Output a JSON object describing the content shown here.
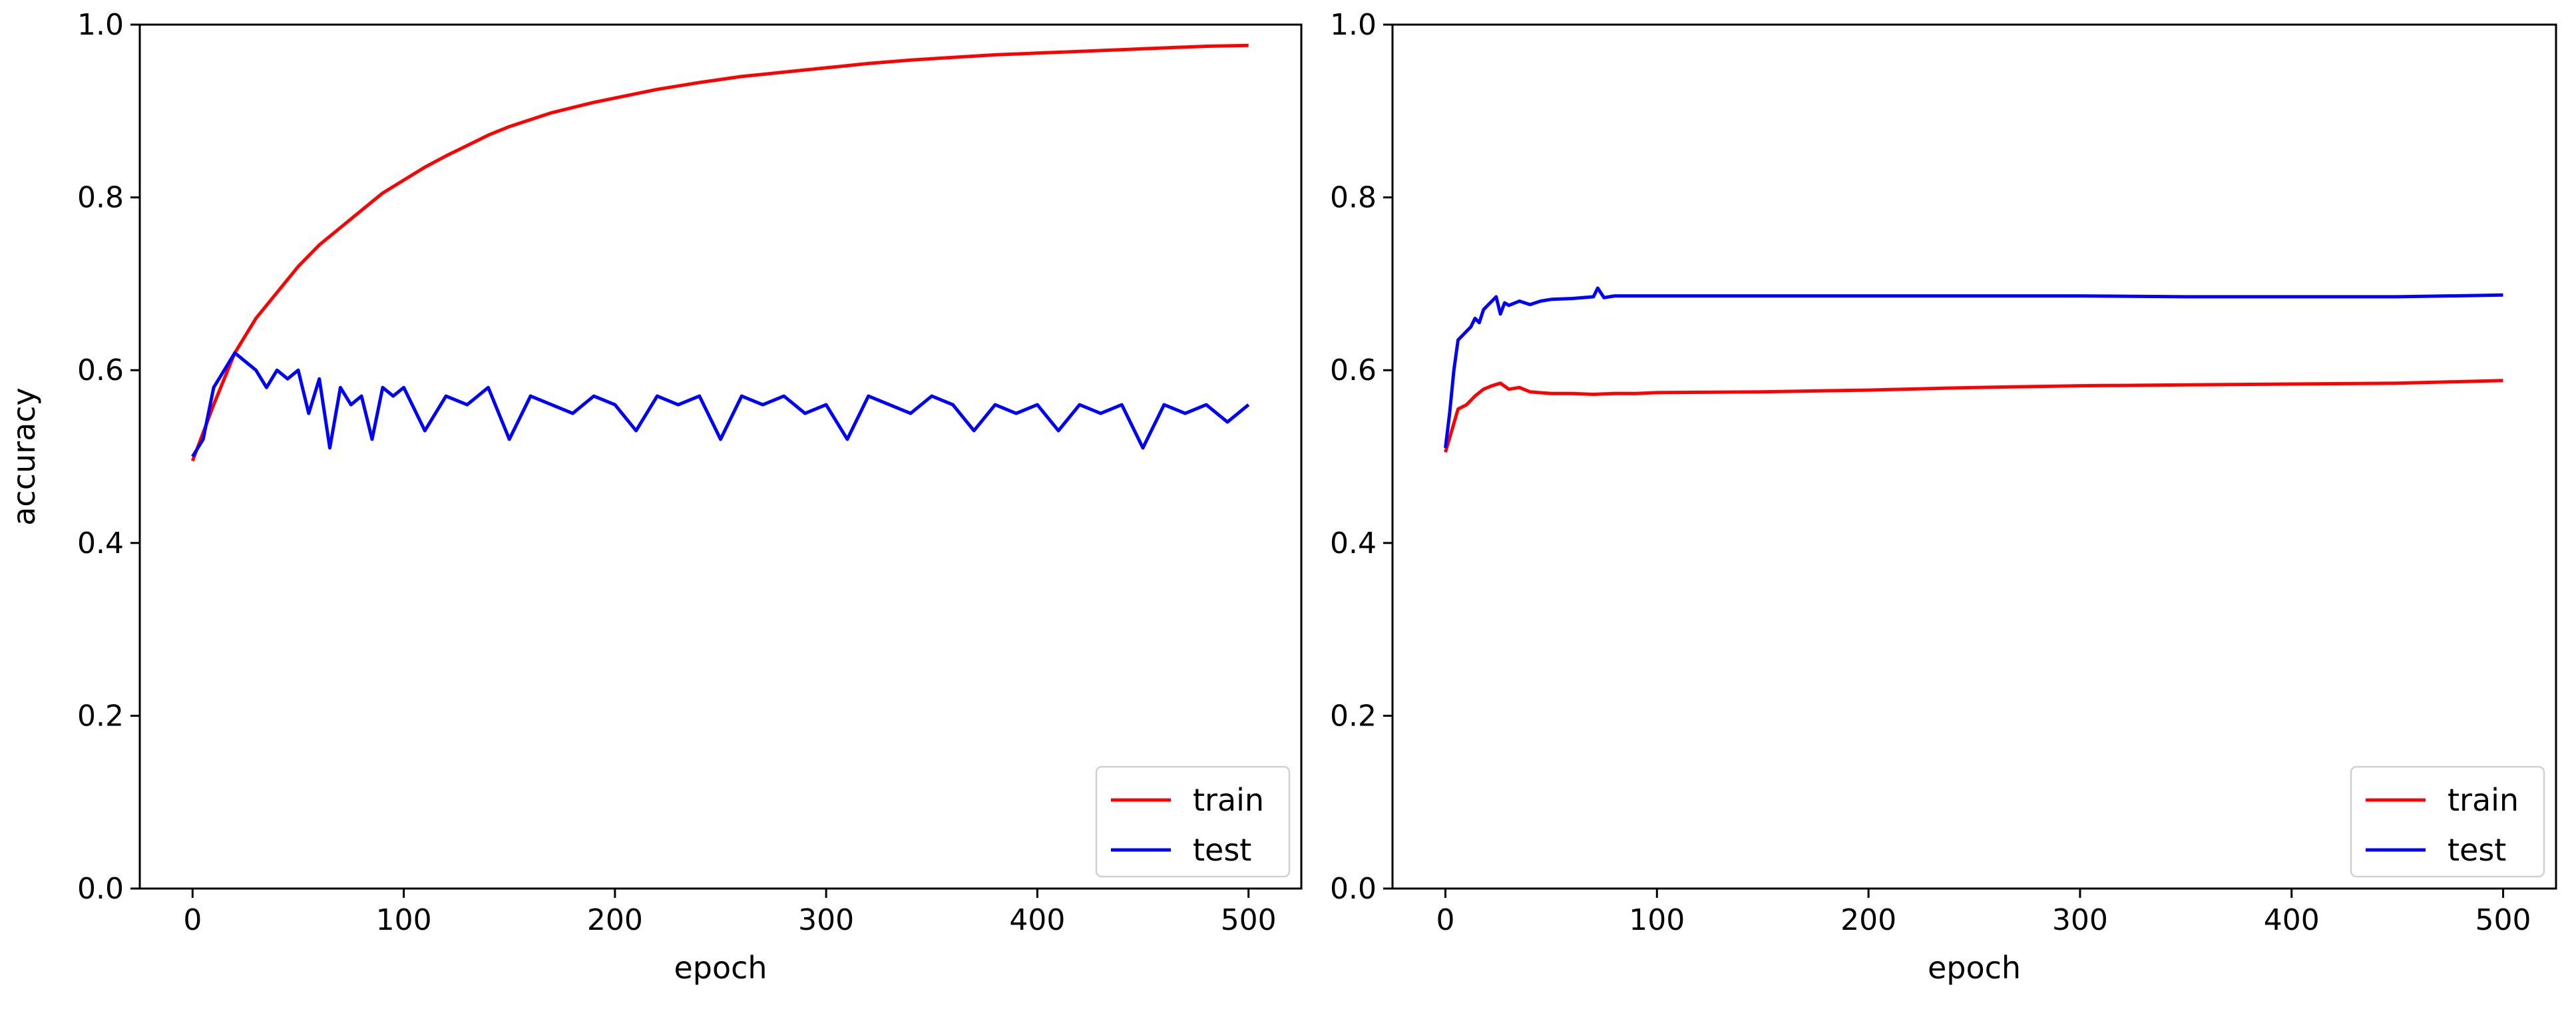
{
  "colors": {
    "train": "#ff0000",
    "test": "#0000ff",
    "axis": "#000000",
    "background": "#ffffff"
  },
  "chart_data": [
    {
      "type": "line",
      "xlabel": "epoch",
      "ylabel": "accuracy",
      "xlim": [
        -25,
        525
      ],
      "ylim": [
        0.0,
        1.0
      ],
      "x_ticks": [
        "0",
        "100",
        "200",
        "300",
        "400",
        "500"
      ],
      "y_ticks": [
        "0.0",
        "0.2",
        "0.4",
        "0.6",
        "0.8",
        "1.0"
      ],
      "grid": false,
      "legend_position": "lower right",
      "series": [
        {
          "name": "train",
          "color": "#ff0000",
          "x": [
            0,
            10,
            20,
            30,
            40,
            50,
            60,
            70,
            80,
            90,
            100,
            110,
            120,
            130,
            140,
            150,
            160,
            170,
            180,
            190,
            200,
            220,
            240,
            260,
            280,
            300,
            320,
            340,
            360,
            380,
            400,
            420,
            440,
            460,
            480,
            500
          ],
          "y": [
            0.495,
            0.56,
            0.62,
            0.66,
            0.69,
            0.72,
            0.745,
            0.765,
            0.785,
            0.805,
            0.82,
            0.835,
            0.848,
            0.86,
            0.872,
            0.882,
            0.89,
            0.898,
            0.904,
            0.91,
            0.915,
            0.925,
            0.933,
            0.94,
            0.945,
            0.95,
            0.955,
            0.959,
            0.962,
            0.965,
            0.967,
            0.969,
            0.971,
            0.973,
            0.975,
            0.976
          ]
        },
        {
          "name": "test",
          "color": "#0000ff",
          "x": [
            0,
            5,
            10,
            15,
            20,
            25,
            30,
            35,
            40,
            45,
            50,
            55,
            60,
            65,
            70,
            75,
            80,
            85,
            90,
            95,
            100,
            110,
            120,
            130,
            140,
            150,
            160,
            170,
            180,
            190,
            200,
            210,
            220,
            230,
            240,
            250,
            260,
            270,
            280,
            290,
            300,
            310,
            320,
            330,
            340,
            350,
            360,
            370,
            380,
            390,
            400,
            410,
            420,
            430,
            440,
            450,
            460,
            470,
            480,
            490,
            500
          ],
          "y": [
            0.5,
            0.52,
            0.58,
            0.6,
            0.62,
            0.61,
            0.6,
            0.58,
            0.6,
            0.59,
            0.6,
            0.55,
            0.59,
            0.51,
            0.58,
            0.56,
            0.57,
            0.52,
            0.58,
            0.57,
            0.58,
            0.53,
            0.57,
            0.56,
            0.58,
            0.52,
            0.57,
            0.56,
            0.55,
            0.57,
            0.56,
            0.53,
            0.57,
            0.56,
            0.57,
            0.52,
            0.57,
            0.56,
            0.57,
            0.55,
            0.56,
            0.52,
            0.57,
            0.56,
            0.55,
            0.57,
            0.56,
            0.53,
            0.56,
            0.55,
            0.56,
            0.53,
            0.56,
            0.55,
            0.56,
            0.51,
            0.56,
            0.55,
            0.56,
            0.54,
            0.56
          ]
        }
      ]
    },
    {
      "type": "line",
      "xlabel": "epoch",
      "ylabel": "",
      "xlim": [
        -25,
        525
      ],
      "ylim": [
        0.0,
        1.0
      ],
      "x_ticks": [
        "0",
        "100",
        "200",
        "300",
        "400",
        "500"
      ],
      "y_ticks": [
        "0.0",
        "0.2",
        "0.4",
        "0.6",
        "0.8",
        "1.0"
      ],
      "grid": false,
      "legend_position": "lower right",
      "series": [
        {
          "name": "train",
          "color": "#ff0000",
          "x": [
            0,
            3,
            6,
            10,
            14,
            18,
            22,
            26,
            30,
            35,
            40,
            50,
            60,
            70,
            80,
            90,
            100,
            150,
            200,
            250,
            300,
            350,
            400,
            450,
            500
          ],
          "y": [
            0.505,
            0.53,
            0.555,
            0.56,
            0.57,
            0.578,
            0.582,
            0.585,
            0.578,
            0.58,
            0.575,
            0.573,
            0.573,
            0.572,
            0.573,
            0.573,
            0.574,
            0.575,
            0.577,
            0.58,
            0.582,
            0.583,
            0.584,
            0.585,
            0.588
          ]
        },
        {
          "name": "test",
          "color": "#0000ff",
          "x": [
            0,
            2,
            4,
            6,
            8,
            10,
            12,
            14,
            16,
            18,
            20,
            22,
            24,
            26,
            28,
            30,
            35,
            40,
            45,
            50,
            60,
            70,
            72,
            75,
            80,
            90,
            100,
            150,
            200,
            250,
            300,
            350,
            400,
            450,
            500
          ],
          "y": [
            0.51,
            0.55,
            0.6,
            0.635,
            0.64,
            0.645,
            0.65,
            0.66,
            0.655,
            0.67,
            0.675,
            0.68,
            0.685,
            0.665,
            0.678,
            0.675,
            0.68,
            0.676,
            0.68,
            0.682,
            0.683,
            0.685,
            0.695,
            0.684,
            0.686,
            0.686,
            0.686,
            0.686,
            0.686,
            0.686,
            0.686,
            0.685,
            0.685,
            0.685,
            0.687
          ]
        }
      ]
    }
  ]
}
